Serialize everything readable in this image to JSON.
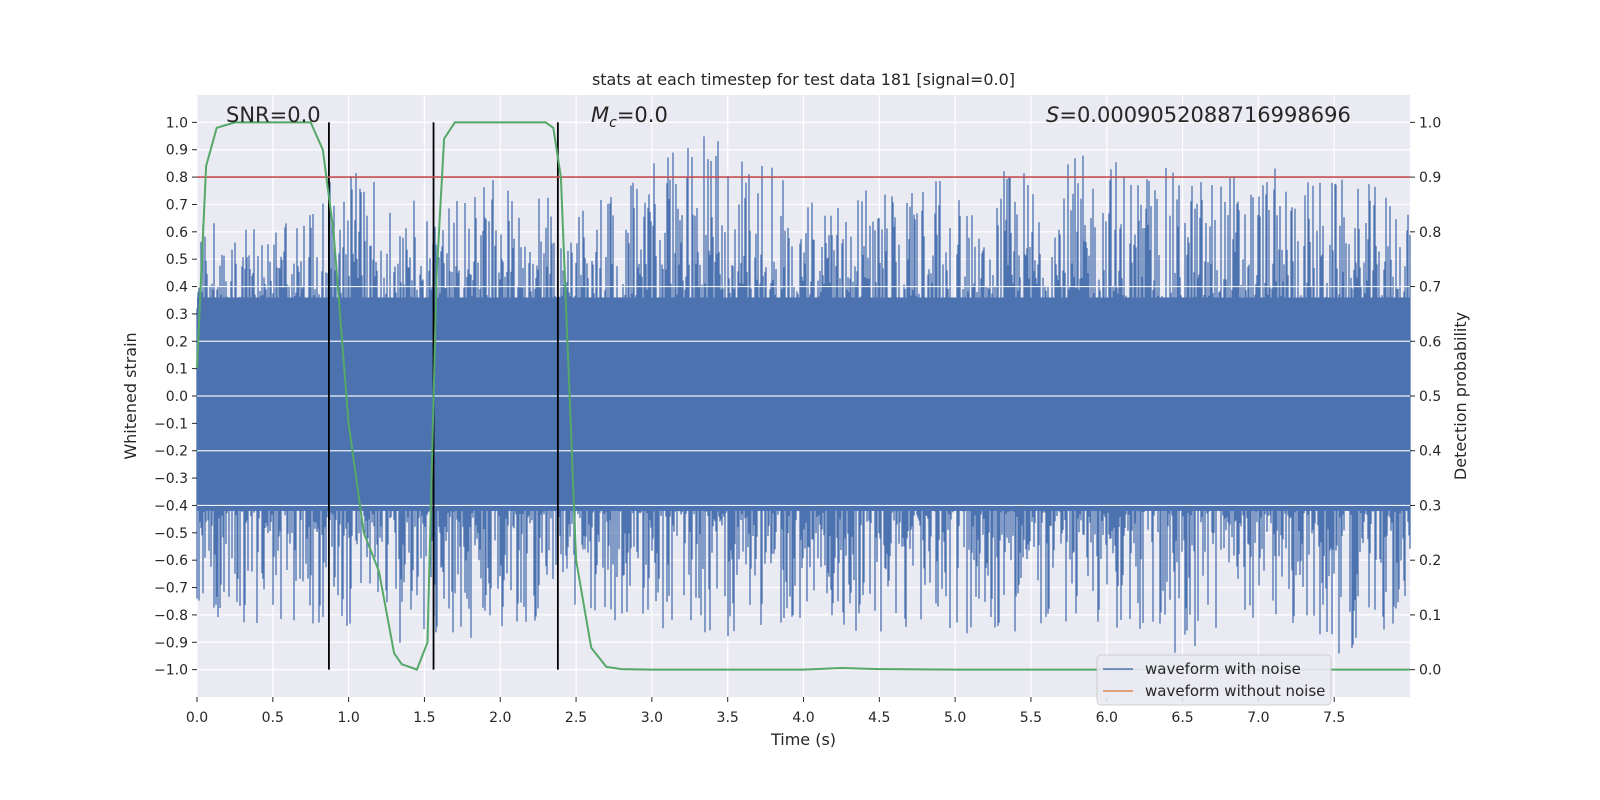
{
  "chart_data": {
    "type": "line",
    "title": "stats at each timestep for test data 181 [signal=0.0]",
    "xlabel": "Time (s)",
    "ylabel": "Whitened strain",
    "y2label": "Detection probability",
    "xlim": [
      0.0,
      8.0
    ],
    "ylim": [
      -1.1,
      1.1
    ],
    "y2lim": [
      -0.05,
      1.05
    ],
    "x_ticks": [
      "0.0",
      "0.5",
      "1.0",
      "1.5",
      "2.0",
      "2.5",
      "3.0",
      "3.5",
      "4.0",
      "4.5",
      "5.0",
      "5.5",
      "6.0",
      "6.5",
      "7.0",
      "7.5"
    ],
    "y_ticks": [
      "1.0",
      "0.9",
      "0.8",
      "0.7",
      "0.6",
      "0.5",
      "0.4",
      "0.3",
      "0.2",
      "0.1",
      "0.0",
      "−0.1",
      "−0.2",
      "−0.3",
      "−0.4",
      "−0.5",
      "−0.6",
      "−0.7",
      "−0.8",
      "−0.9",
      "−1.0"
    ],
    "y2_ticks": [
      "1.0",
      "0.9",
      "0.8",
      "0.7",
      "0.6",
      "0.5",
      "0.4",
      "0.3",
      "0.2",
      "0.1",
      "0.0"
    ],
    "grid": true,
    "legend_position": "bottom-right",
    "annotations": {
      "snr": "SNR=0.0",
      "mc_symbol": "M",
      "mc_subscript": "c",
      "mc_value": "=0.0",
      "s_symbol": "S",
      "s_value": "=0.0009052088716998696"
    },
    "series": [
      {
        "name": "waveform with noise",
        "color": "#4c72b0",
        "description_note": "",
        "envelope_x": [
          0.0,
          0.5,
          1.0,
          1.5,
          2.0,
          2.5,
          3.0,
          3.5,
          4.0,
          4.5,
          5.0,
          5.5,
          6.0,
          6.5,
          7.0,
          7.5,
          8.0
        ],
        "envelope_top": [
          0.65,
          0.6,
          0.85,
          0.7,
          0.8,
          0.7,
          0.85,
          1.0,
          0.78,
          0.75,
          0.8,
          0.85,
          0.9,
          0.82,
          0.85,
          0.8,
          0.75
        ],
        "envelope_bottom": [
          -0.85,
          -0.85,
          -0.85,
          -0.95,
          -0.85,
          -0.8,
          -0.9,
          -0.88,
          -0.85,
          -0.88,
          -0.9,
          -0.85,
          -0.85,
          -0.98,
          -0.8,
          -0.95,
          -0.85
        ]
      },
      {
        "name": "waveform without noise",
        "color": "#dd8452"
      },
      {
        "name": "",
        "color": "#55a868",
        "axis": "right",
        "x": [
          0.0,
          0.06,
          0.13,
          0.25,
          0.5,
          0.75,
          0.83,
          0.9,
          1.0,
          1.1,
          1.2,
          1.3,
          1.35,
          1.45,
          1.52,
          1.58,
          1.63,
          1.7,
          2.0,
          2.3,
          2.35,
          2.4,
          2.45,
          2.5,
          2.6,
          2.7,
          2.8,
          3.0,
          3.5,
          4.0,
          4.25,
          4.5,
          5.0,
          6.0,
          7.0,
          8.0
        ],
        "y": [
          0.55,
          0.92,
          0.99,
          1.0,
          1.0,
          1.0,
          0.95,
          0.8,
          0.45,
          0.25,
          0.18,
          0.03,
          0.01,
          0.0,
          0.05,
          0.72,
          0.97,
          1.0,
          1.0,
          1.0,
          0.99,
          0.9,
          0.55,
          0.2,
          0.04,
          0.005,
          0.001,
          0.0,
          0.0,
          0.0,
          0.003,
          0.001,
          0.0,
          0.0,
          0.0,
          0.0
        ]
      }
    ],
    "threshold": {
      "value": 0.9,
      "axis": "right",
      "color": "#c44e52"
    },
    "vertical_markers": [
      0.87,
      1.56,
      2.38
    ],
    "legend": [
      {
        "label": "waveform with noise",
        "color": "#4c72b0"
      },
      {
        "label": "waveform without noise",
        "color": "#dd8452"
      }
    ]
  }
}
